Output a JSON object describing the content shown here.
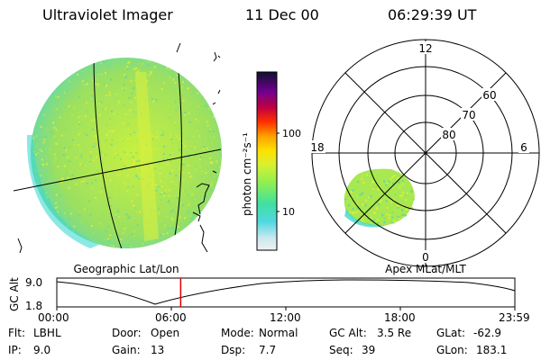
{
  "header": {
    "title": "Ultraviolet Imager",
    "date": "11 Dec 00",
    "time": "06:29:39 UT"
  },
  "colorbar": {
    "unit_label": "photon cm⁻²s⁻¹",
    "tick_labels": [
      "100",
      "10"
    ],
    "scale": "log"
  },
  "left_panel": {
    "caption": "Geographic Lat/Lon"
  },
  "right_panel": {
    "caption": "Apex MLat/MLT",
    "mlt_labels": {
      "top": "12",
      "left": "18",
      "right": "6",
      "bottom": "0"
    },
    "lat_labels": [
      "60",
      "70",
      "80"
    ]
  },
  "timeline": {
    "y_axis_label": "GC Alt",
    "y_ticks": [
      "9.0",
      "1.8"
    ],
    "x_ticks": [
      "00:00",
      "06:00",
      "12:00",
      "18:00",
      "23:59"
    ],
    "current_time_fraction": 0.2704,
    "marker_color": "#e00000"
  },
  "info": {
    "row1": [
      {
        "key": "Flt:",
        "value": "LBHL"
      },
      {
        "key": "Door:",
        "value": "Open"
      },
      {
        "key": "Mode:",
        "value": "Normal"
      },
      {
        "key": "GC Alt:",
        "value": "3.5 Re"
      },
      {
        "key": "GLat:",
        "value": "-62.9"
      }
    ],
    "row2": [
      {
        "key": "IP:",
        "value": "9.0"
      },
      {
        "key": "Gain:",
        "value": "13"
      },
      {
        "key": "Dsp:",
        "value": "7.7"
      },
      {
        "key": "Seq:",
        "value": "39"
      },
      {
        "key": "GLon:",
        "value": "183.1"
      }
    ]
  }
}
